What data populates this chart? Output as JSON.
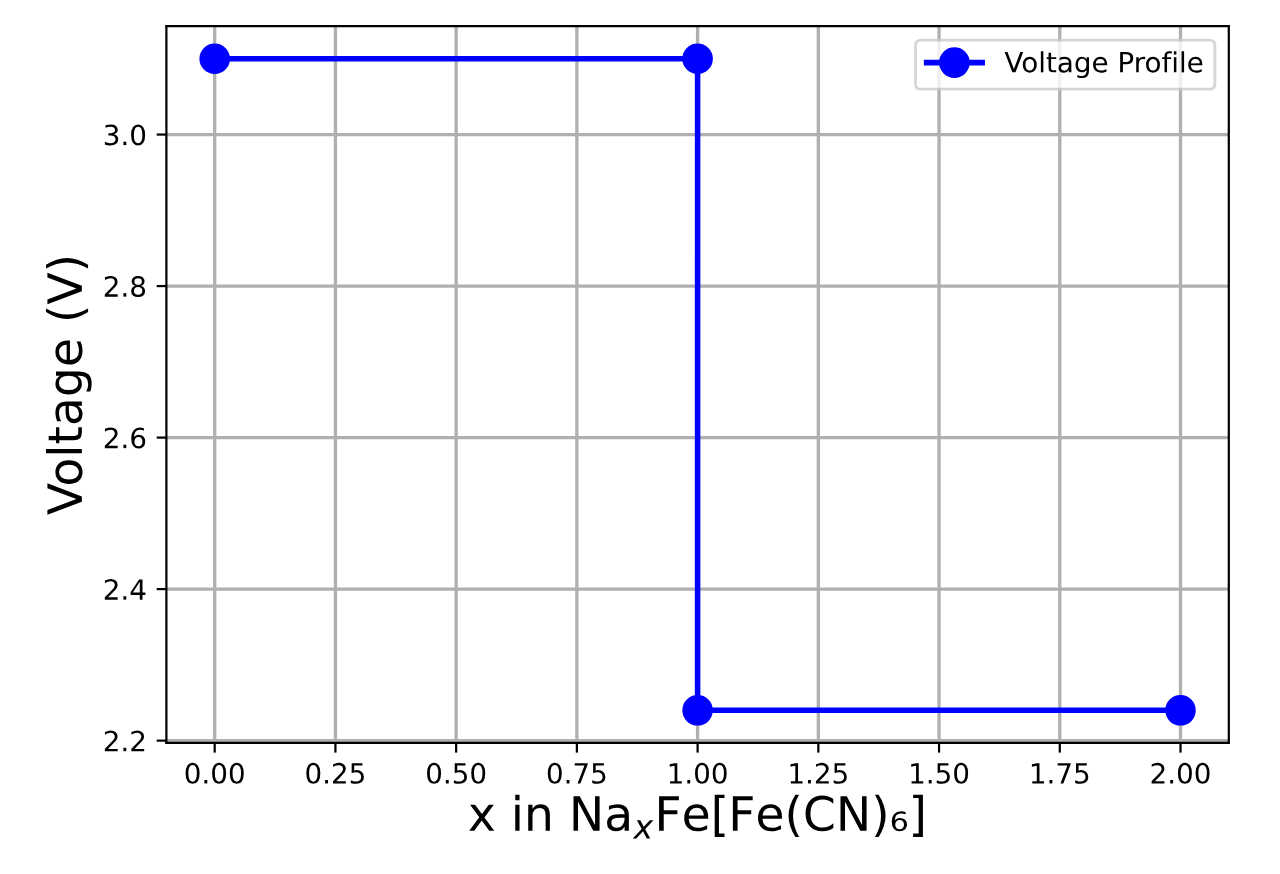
{
  "chart_data": {
    "type": "line",
    "xlabel": "x in Na$_{x}$Fe[Fe(CN)₆]",
    "ylabel": "Voltage (V)",
    "x": [
      0,
      1,
      1,
      2
    ],
    "series": [
      {
        "name": "Voltage Profile",
        "color": "#0000ff",
        "values": [
          3.1,
          3.1,
          2.24,
          2.24
        ]
      }
    ],
    "xlim": [
      -0.1,
      2.1
    ],
    "ylim": [
      2.197,
      3.143
    ],
    "xticks": [
      {
        "value": 0,
        "label": "0.00"
      },
      {
        "value": 0.25,
        "label": "0.25"
      },
      {
        "value": 0.5,
        "label": "0.50"
      },
      {
        "value": 0.75,
        "label": "0.75"
      },
      {
        "value": 1,
        "label": "1.00"
      },
      {
        "value": 1.25,
        "label": "1.25"
      },
      {
        "value": 1.5,
        "label": "1.50"
      },
      {
        "value": 1.75,
        "label": "1.75"
      },
      {
        "value": 2,
        "label": "2.00"
      }
    ],
    "yticks": [
      {
        "value": 2.2,
        "label": "2.2"
      },
      {
        "value": 2.4,
        "label": "2.4"
      },
      {
        "value": 2.6,
        "label": "2.6"
      },
      {
        "value": 2.8,
        "label": "2.8"
      },
      {
        "value": 3.0,
        "label": "3.0"
      }
    ],
    "grid": true,
    "legend": "top right",
    "marker": "circle",
    "line_style": "solid"
  }
}
